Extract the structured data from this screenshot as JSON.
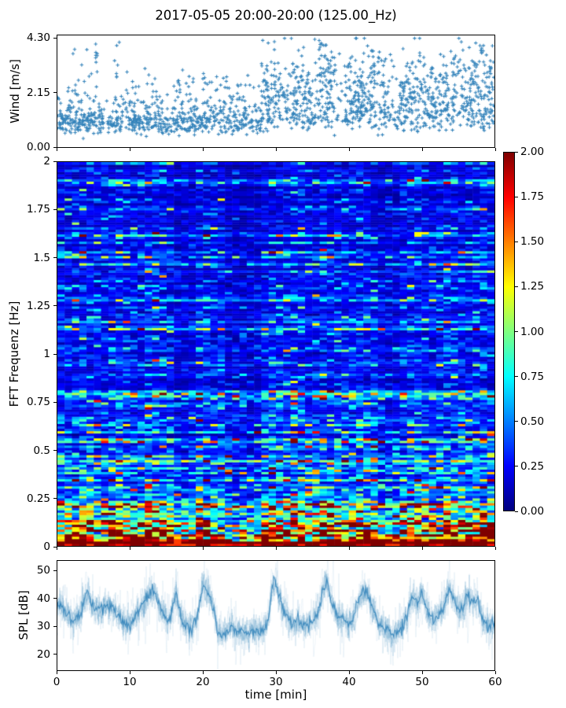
{
  "figure": {
    "title": "2017-05-05 20:00-20:00 (125.00_Hz)",
    "xlabel": "time [min]",
    "background": "#ffffff",
    "axis_color": "#000000"
  },
  "wind_plot": {
    "ylabel": "Wind [m/s]"
  },
  "spectrogram_plot": {
    "ylabel": "FFT Frequenz [Hz]"
  },
  "spl_plot": {
    "ylabel": "SPL [dB]"
  },
  "chart_data": [
    {
      "type": "scatter",
      "name": "wind",
      "ylabel": "Wind [m/s]",
      "xlim": [
        0,
        60
      ],
      "ylim": [
        0,
        4.3
      ],
      "yticks": [
        {
          "v": 4.3,
          "label": "4.30"
        },
        {
          "v": 2.15,
          "label": "2.15"
        },
        {
          "v": 0,
          "label": "0.00"
        }
      ],
      "xticks": [
        0,
        10,
        20,
        30,
        40,
        50,
        60
      ],
      "marker": "+",
      "color": "#1f77b4",
      "gen": {
        "seed": 42,
        "base_count": 1500,
        "segments": [
          {
            "t0": 0,
            "t1": 28,
            "median": 1.05,
            "sigma": 0.32
          },
          {
            "t0": 28,
            "t1": 60,
            "median": 1.6,
            "sigma": 0.42
          }
        ],
        "spikes": [
          {
            "t": 1.9,
            "max": 4.0,
            "n": 3
          },
          {
            "t": 3.7,
            "max": 4.05,
            "n": 3
          },
          {
            "t": 2.1,
            "max": 2.5,
            "n": 8
          },
          {
            "t": 5.6,
            "max": 4.15,
            "n": 10
          },
          {
            "t": 8.3,
            "max": 4.25,
            "n": 12
          },
          {
            "t": 10.5,
            "max": 2.6,
            "n": 8
          },
          {
            "t": 13.0,
            "max": 3.1,
            "n": 10
          },
          {
            "t": 16.5,
            "max": 2.9,
            "n": 10
          },
          {
            "t": 18.5,
            "max": 2.7,
            "n": 8
          },
          {
            "t": 20.3,
            "max": 3.0,
            "n": 10
          },
          {
            "t": 22.4,
            "max": 2.8,
            "n": 8
          },
          {
            "t": 25.0,
            "max": 2.5,
            "n": 8
          },
          {
            "t": 29.0,
            "max": 3.3,
            "n": 20
          },
          {
            "t": 30.5,
            "max": 3.1,
            "n": 16
          },
          {
            "t": 33.0,
            "max": 3.4,
            "n": 18
          },
          {
            "t": 34.5,
            "max": 3.0,
            "n": 14
          },
          {
            "t": 36.3,
            "max": 4.25,
            "n": 26
          },
          {
            "t": 37.4,
            "max": 4.0,
            "n": 18
          },
          {
            "t": 40.0,
            "max": 3.5,
            "n": 16
          },
          {
            "t": 41.5,
            "max": 3.2,
            "n": 12
          },
          {
            "t": 43.3,
            "max": 4.2,
            "n": 22
          },
          {
            "t": 44.5,
            "max": 3.8,
            "n": 14
          },
          {
            "t": 47.0,
            "max": 3.0,
            "n": 12
          },
          {
            "t": 48.5,
            "max": 3.3,
            "n": 12
          },
          {
            "t": 50.0,
            "max": 3.6,
            "n": 16
          },
          {
            "t": 51.5,
            "max": 3.1,
            "n": 10
          },
          {
            "t": 53.2,
            "max": 3.9,
            "n": 18
          },
          {
            "t": 54.6,
            "max": 3.6,
            "n": 14
          },
          {
            "t": 56.0,
            "max": 3.3,
            "n": 12
          },
          {
            "t": 57.2,
            "max": 3.6,
            "n": 14
          },
          {
            "t": 58.6,
            "max": 4.1,
            "n": 18
          },
          {
            "t": 59.6,
            "max": 3.4,
            "n": 10
          }
        ]
      }
    },
    {
      "type": "heatmap",
      "name": "fft-spectrogram",
      "ylabel": "FFT Frequenz [Hz]",
      "xlim": [
        0,
        60
      ],
      "ylim": [
        0,
        2
      ],
      "clim": [
        0,
        2
      ],
      "colormap": "jet",
      "cmap_stops": [
        [
          0,
          "#00007f"
        ],
        [
          0.125,
          "#0000ff"
        ],
        [
          0.375,
          "#00ffff"
        ],
        [
          0.625,
          "#ffff00"
        ],
        [
          0.875,
          "#ff0000"
        ],
        [
          1,
          "#7f0000"
        ]
      ],
      "rows": 160,
      "cols": 60,
      "yticks": [
        {
          "v": 2,
          "label": "2"
        },
        {
          "v": 1.75,
          "label": "1.75"
        },
        {
          "v": 1.5,
          "label": "1.5"
        },
        {
          "v": 1.25,
          "label": "1.25"
        },
        {
          "v": 1,
          "label": "1"
        },
        {
          "v": 0.75,
          "label": "0.75"
        },
        {
          "v": 0.5,
          "label": "0.5"
        },
        {
          "v": 0.25,
          "label": "0.25"
        },
        {
          "v": 0,
          "label": "0"
        }
      ],
      "colorbar_ticks": [
        {
          "v": 2,
          "label": "2.00"
        },
        {
          "v": 1.75,
          "label": "1.75"
        },
        {
          "v": 1.5,
          "label": "1.50"
        },
        {
          "v": 1.25,
          "label": "1.25"
        },
        {
          "v": 1,
          "label": "1.00"
        },
        {
          "v": 0.75,
          "label": "0.75"
        },
        {
          "v": 0.5,
          "label": "0.50"
        },
        {
          "v": 0.25,
          "label": "0.25"
        },
        {
          "v": 0,
          "label": "0.00"
        }
      ],
      "gen": {
        "seed": 7,
        "spectral_profile": [
          [
            0,
            2.05
          ],
          [
            0.04,
            1.9
          ],
          [
            0.08,
            1.35
          ],
          [
            0.14,
            0.95
          ],
          [
            0.22,
            0.6
          ],
          [
            0.32,
            0.42
          ],
          [
            0.5,
            0.3
          ],
          [
            1.0,
            0.24
          ],
          [
            2.0,
            0.18
          ]
        ],
        "streak_freqs": [
          0.55,
          0.78,
          0.8,
          1.13,
          1.62,
          1.9
        ],
        "column_peaks": {
          "times": [
            4,
            8,
            13,
            20,
            29.5,
            33,
            36.5,
            42,
            49.5,
            53.8,
            58.5
          ],
          "amp": 0.55,
          "sigma": 0.8
        },
        "dark_bands": [
          [
            16,
            18.5,
            0.72
          ],
          [
            23.5,
            28,
            0.7
          ],
          [
            44,
            47,
            0.75
          ]
        ],
        "noise_sigma": 0.5
      }
    },
    {
      "type": "line",
      "name": "spl",
      "ylabel": "SPL [dB]",
      "xlabel": "time [min]",
      "xlim": [
        0,
        60
      ],
      "ylim": [
        14,
        53.7
      ],
      "yticks": [
        {
          "v": 50,
          "label": "50"
        },
        {
          "v": 40,
          "label": "40"
        },
        {
          "v": 30,
          "label": "30"
        },
        {
          "v": 20,
          "label": "20"
        }
      ],
      "xticks": [
        {
          "v": 0,
          "label": "0"
        },
        {
          "v": 10,
          "label": "10"
        },
        {
          "v": 20,
          "label": "20"
        },
        {
          "v": 30,
          "label": "30"
        },
        {
          "v": 40,
          "label": "40"
        },
        {
          "v": 50,
          "label": "50"
        },
        {
          "v": 60,
          "label": "60"
        }
      ],
      "color": "#1f77b4",
      "gen": {
        "seed": 99,
        "noise_sd": 2.6,
        "envelope": [
          [
            0,
            37
          ],
          [
            0.5,
            38
          ],
          [
            1,
            36
          ],
          [
            1.5,
            34
          ],
          [
            2,
            32.5
          ],
          [
            2.5,
            33
          ],
          [
            3,
            34
          ],
          [
            3.7,
            40
          ],
          [
            4.2,
            42
          ],
          [
            4.6,
            38
          ],
          [
            5,
            36.5
          ],
          [
            5.5,
            37
          ],
          [
            6,
            36
          ],
          [
            6.5,
            38
          ],
          [
            7,
            37
          ],
          [
            7.5,
            36
          ],
          [
            8,
            35.5
          ],
          [
            8.5,
            34
          ],
          [
            9,
            31
          ],
          [
            9.5,
            30.5
          ],
          [
            10,
            31.5
          ],
          [
            10.5,
            33
          ],
          [
            11,
            34.5
          ],
          [
            11.5,
            37
          ],
          [
            12,
            39
          ],
          [
            12.5,
            41
          ],
          [
            13.2,
            43.5
          ],
          [
            13.6,
            41
          ],
          [
            14,
            37
          ],
          [
            14.5,
            34.5
          ],
          [
            15,
            33
          ],
          [
            15.5,
            33.5
          ],
          [
            16,
            39.5
          ],
          [
            16.4,
            41
          ],
          [
            17,
            33
          ],
          [
            17.5,
            30
          ],
          [
            18,
            29
          ],
          [
            18.5,
            30
          ],
          [
            19,
            31.5
          ],
          [
            19.5,
            38
          ],
          [
            20,
            45
          ],
          [
            20.5,
            43
          ],
          [
            21,
            40
          ],
          [
            21.5,
            36
          ],
          [
            22,
            28
          ],
          [
            22.5,
            26.5
          ],
          [
            23,
            28
          ],
          [
            23.5,
            29
          ],
          [
            24,
            29.5
          ],
          [
            24.5,
            28.5
          ],
          [
            25,
            28
          ],
          [
            25.5,
            27.5
          ],
          [
            26,
            27
          ],
          [
            26.5,
            27.5
          ],
          [
            27,
            28
          ],
          [
            27.5,
            28.5
          ],
          [
            28,
            28
          ],
          [
            28.5,
            29
          ],
          [
            29,
            33
          ],
          [
            29.5,
            45
          ],
          [
            29.9,
            46
          ],
          [
            30.3,
            42
          ],
          [
            31,
            36
          ],
          [
            31.5,
            34
          ],
          [
            32,
            31
          ],
          [
            32.5,
            30.5
          ],
          [
            33,
            31.5
          ],
          [
            33.5,
            30.5
          ],
          [
            34,
            30
          ],
          [
            34.5,
            31
          ],
          [
            35,
            32
          ],
          [
            35.5,
            33.5
          ],
          [
            36,
            37
          ],
          [
            36.5,
            43
          ],
          [
            36.9,
            45.5
          ],
          [
            37.3,
            42
          ],
          [
            38,
            36
          ],
          [
            38.5,
            34
          ],
          [
            39,
            33
          ],
          [
            39.5,
            32
          ],
          [
            40,
            30.5
          ],
          [
            40.5,
            32
          ],
          [
            41,
            36.5
          ],
          [
            41.6,
            40
          ],
          [
            42.2,
            43
          ],
          [
            42.6,
            41.5
          ],
          [
            43,
            38.5
          ],
          [
            43.5,
            35
          ],
          [
            44,
            31.5
          ],
          [
            44.5,
            30
          ],
          [
            45,
            28.5
          ],
          [
            45.5,
            28
          ],
          [
            46,
            27.5
          ],
          [
            46.5,
            28
          ],
          [
            47,
            28.5
          ],
          [
            47.5,
            30
          ],
          [
            48,
            33.5
          ],
          [
            48.6,
            41
          ],
          [
            49,
            39
          ],
          [
            49.5,
            38.5
          ],
          [
            50,
            42
          ],
          [
            50.4,
            40
          ],
          [
            51,
            34
          ],
          [
            51.5,
            32.5
          ],
          [
            52,
            33.5
          ],
          [
            52.5,
            34.5
          ],
          [
            53,
            36.5
          ],
          [
            53.8,
            44
          ],
          [
            54.3,
            40
          ],
          [
            54.8,
            36.5
          ],
          [
            55.3,
            35
          ],
          [
            55.8,
            37.5
          ],
          [
            56.3,
            41
          ],
          [
            56.8,
            39
          ],
          [
            57.3,
            38
          ],
          [
            57.7,
            40.5
          ],
          [
            58,
            36
          ],
          [
            58.5,
            32
          ],
          [
            59,
            30
          ],
          [
            59.5,
            29.5
          ],
          [
            60,
            31
          ]
        ]
      }
    }
  ]
}
